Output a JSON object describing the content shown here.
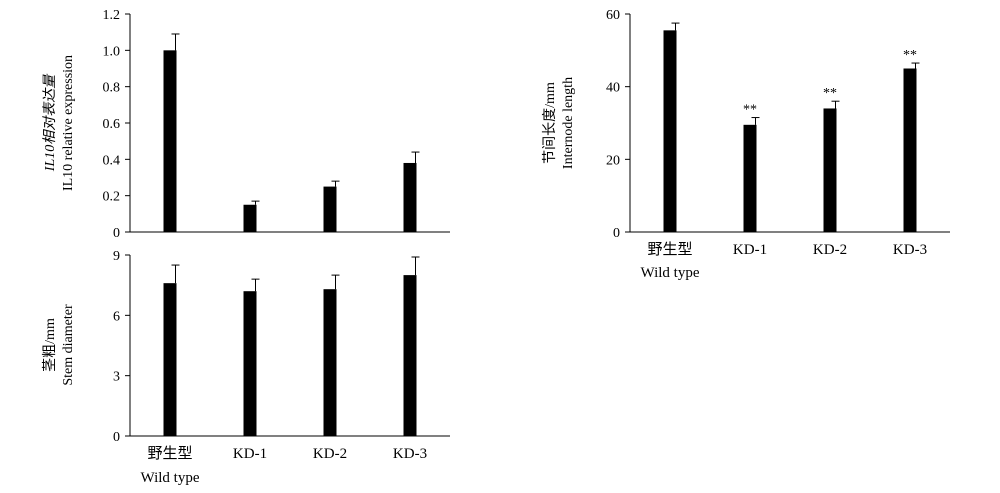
{
  "chart_data": [
    {
      "id": "expression",
      "type": "bar",
      "categories": [
        "野生型",
        "KD-1",
        "KD-2",
        "KD-3"
      ],
      "category_sublabels": [
        "Wild type",
        "",
        "",
        ""
      ],
      "values": [
        1.0,
        0.15,
        0.25,
        0.38
      ],
      "errors": [
        0.09,
        0.02,
        0.03,
        0.06
      ],
      "significance": [
        "",
        "",
        "",
        ""
      ],
      "ylabel_line1": "IL10相对表达量",
      "ylabel_line2": "IL10 relative expression",
      "ylim": [
        0,
        1.2
      ],
      "yticks": [
        "0",
        "0.2",
        "0.4",
        "0.6",
        "0.8",
        "1.0",
        "1.2"
      ],
      "show_category_labels": false,
      "grid": false
    },
    {
      "id": "stem",
      "type": "bar",
      "categories": [
        "野生型",
        "KD-1",
        "KD-2",
        "KD-3"
      ],
      "category_sublabels": [
        "Wild type",
        "",
        "",
        ""
      ],
      "values": [
        7.6,
        7.2,
        7.3,
        8.0
      ],
      "errors": [
        0.9,
        0.6,
        0.7,
        0.9
      ],
      "significance": [
        "",
        "",
        "",
        ""
      ],
      "ylabel_line1": "茎粗/mm",
      "ylabel_line2": "Stem diameter",
      "ylim": [
        0,
        9
      ],
      "yticks": [
        "0",
        "3",
        "6",
        "9"
      ],
      "show_category_labels": true,
      "grid": false
    },
    {
      "id": "internode",
      "type": "bar",
      "categories": [
        "野生型",
        "KD-1",
        "KD-2",
        "KD-3"
      ],
      "category_sublabels": [
        "Wild type",
        "",
        "",
        ""
      ],
      "values": [
        55.5,
        29.5,
        34.0,
        45.0
      ],
      "errors": [
        2.0,
        2.0,
        2.0,
        1.5
      ],
      "significance": [
        "",
        "**",
        "**",
        "**"
      ],
      "ylabel_line1": "节间长度/mm",
      "ylabel_line2": "Internode length",
      "ylim": [
        0,
        60
      ],
      "yticks": [
        "0",
        "20",
        "40",
        "60"
      ],
      "show_category_labels": true,
      "grid": false
    }
  ],
  "colors": {
    "bar": "#000000",
    "axis": "#000000"
  }
}
